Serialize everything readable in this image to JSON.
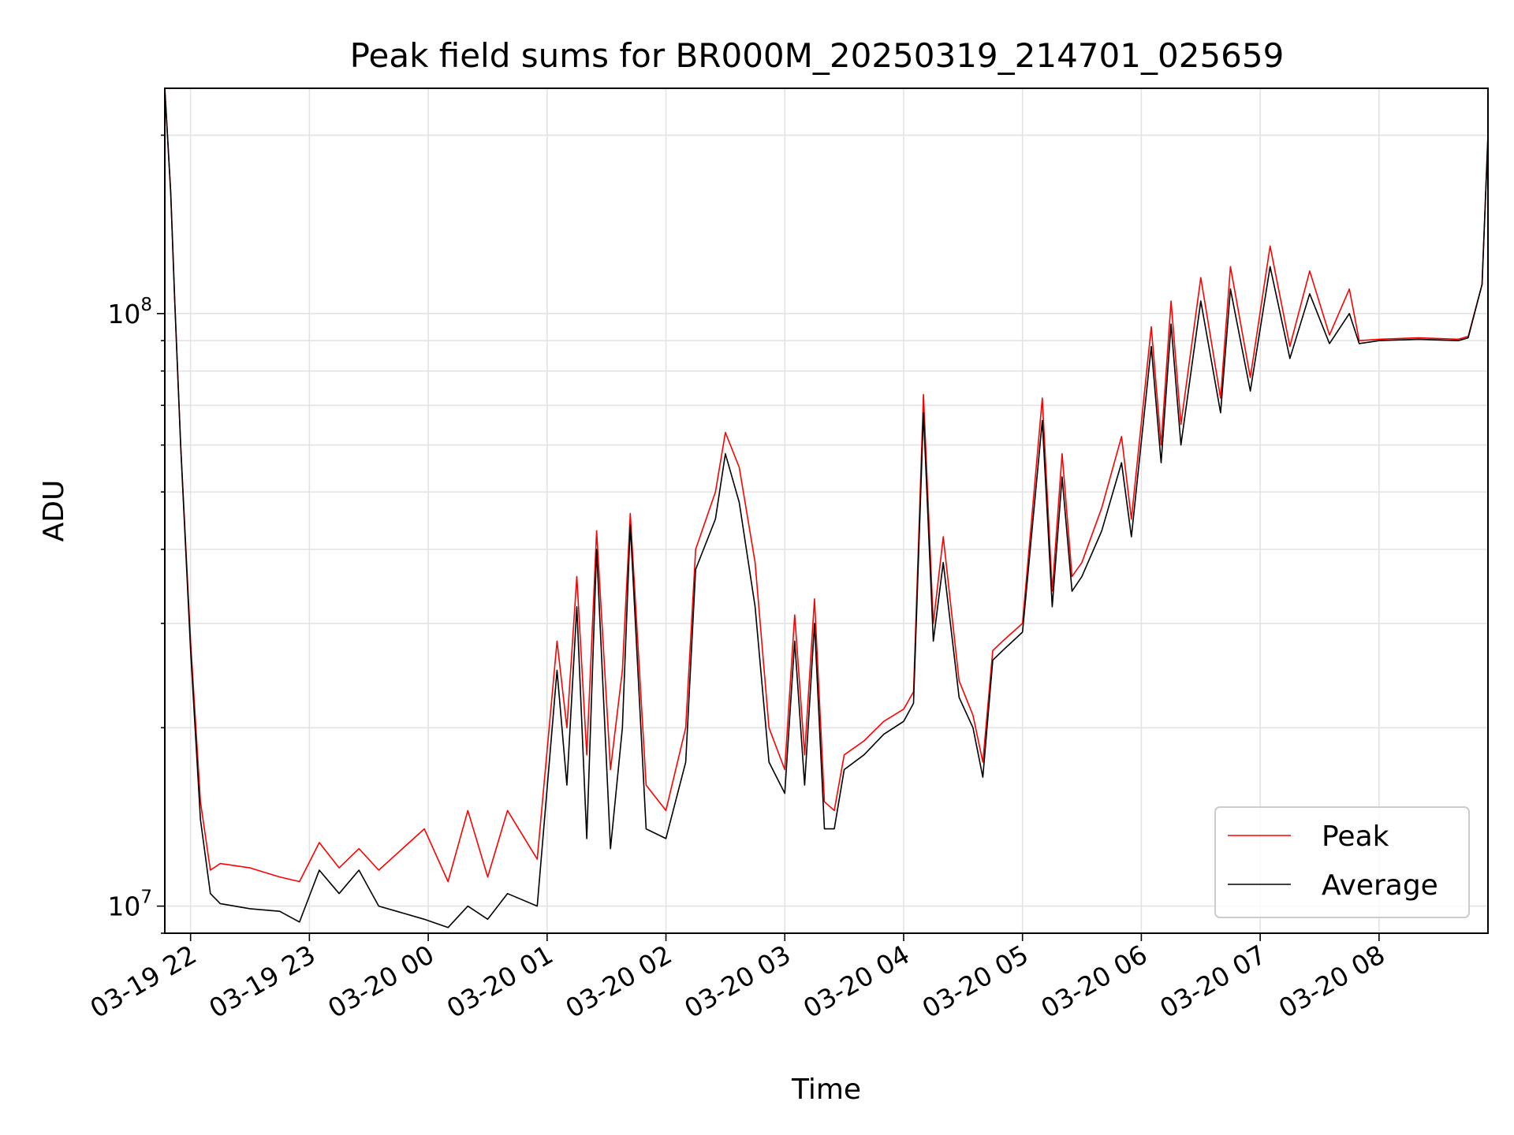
{
  "chart_data": {
    "type": "line",
    "title": "Peak field sums for BR000M_20250319_214701_025659",
    "xlabel": "Time",
    "ylabel": "ADU",
    "yscale": "log",
    "ylim": [
      9000000,
      240000000
    ],
    "xlim": [
      "2025-03-19 21:47",
      "2025-03-20 08:55"
    ],
    "x_ticks": [
      {
        "value": "2025-03-19 22:00",
        "label": "03-19 22"
      },
      {
        "value": "2025-03-19 23:00",
        "label": "03-19 23"
      },
      {
        "value": "2025-03-20 00:00",
        "label": "03-20 00"
      },
      {
        "value": "2025-03-20 01:00",
        "label": "03-20 01"
      },
      {
        "value": "2025-03-20 02:00",
        "label": "03-20 02"
      },
      {
        "value": "2025-03-20 03:00",
        "label": "03-20 03"
      },
      {
        "value": "2025-03-20 04:00",
        "label": "03-20 04"
      },
      {
        "value": "2025-03-20 05:00",
        "label": "03-20 05"
      },
      {
        "value": "2025-03-20 06:00",
        "label": "03-20 06"
      },
      {
        "value": "2025-03-20 07:00",
        "label": "03-20 07"
      },
      {
        "value": "2025-03-20 08:00",
        "label": "03-20 08"
      }
    ],
    "y_ticks": [
      {
        "value": 10000000,
        "base": "10",
        "exp": "7"
      },
      {
        "value": 100000000,
        "base": "10",
        "exp": "8"
      }
    ],
    "grid": true,
    "legend_position": "lower-right",
    "series": [
      {
        "name": "Peak",
        "color": "#ff0000",
        "points": [
          [
            "2025-03-19 21:47",
            240000000
          ],
          [
            "2025-03-19 21:50",
            160000000
          ],
          [
            "2025-03-19 21:52",
            105000000
          ],
          [
            "2025-03-19 21:55",
            60000000
          ],
          [
            "2025-03-19 22:00",
            28000000
          ],
          [
            "2025-03-19 22:05",
            15000000
          ],
          [
            "2025-03-19 22:10",
            11500000
          ],
          [
            "2025-03-19 22:15",
            11800000
          ],
          [
            "2025-03-19 22:30",
            11600000
          ],
          [
            "2025-03-19 22:45",
            11200000
          ],
          [
            "2025-03-19 22:55",
            11000000
          ],
          [
            "2025-03-19 23:05",
            12800000
          ],
          [
            "2025-03-19 23:15",
            11600000
          ],
          [
            "2025-03-19 23:25",
            12500000
          ],
          [
            "2025-03-19 23:35",
            11500000
          ],
          [
            "2025-03-19 23:58",
            13500000
          ],
          [
            "2025-03-20 00:10",
            11000000
          ],
          [
            "2025-03-20 00:20",
            14500000
          ],
          [
            "2025-03-20 00:30",
            11200000
          ],
          [
            "2025-03-20 00:40",
            14500000
          ],
          [
            "2025-03-20 00:55",
            12000000
          ],
          [
            "2025-03-20 01:05",
            28000000
          ],
          [
            "2025-03-20 01:10",
            20000000
          ],
          [
            "2025-03-20 01:15",
            36000000
          ],
          [
            "2025-03-20 01:20",
            18000000
          ],
          [
            "2025-03-20 01:25",
            43000000
          ],
          [
            "2025-03-20 01:32",
            17000000
          ],
          [
            "2025-03-20 01:38",
            25000000
          ],
          [
            "2025-03-20 01:42",
            46000000
          ],
          [
            "2025-03-20 01:50",
            16000000
          ],
          [
            "2025-03-20 02:00",
            14500000
          ],
          [
            "2025-03-20 02:10",
            20000000
          ],
          [
            "2025-03-20 02:15",
            40000000
          ],
          [
            "2025-03-20 02:25",
            50000000
          ],
          [
            "2025-03-20 02:30",
            63000000
          ],
          [
            "2025-03-20 02:37",
            55000000
          ],
          [
            "2025-03-20 02:45",
            38000000
          ],
          [
            "2025-03-20 02:52",
            20000000
          ],
          [
            "2025-03-20 03:00",
            17000000
          ],
          [
            "2025-03-20 03:05",
            31000000
          ],
          [
            "2025-03-20 03:10",
            18000000
          ],
          [
            "2025-03-20 03:15",
            33000000
          ],
          [
            "2025-03-20 03:20",
            15000000
          ],
          [
            "2025-03-20 03:25",
            14500000
          ],
          [
            "2025-03-20 03:30",
            18000000
          ],
          [
            "2025-03-20 03:40",
            19000000
          ],
          [
            "2025-03-20 03:50",
            20500000
          ],
          [
            "2025-03-20 04:00",
            21500000
          ],
          [
            "2025-03-20 04:05",
            23000000
          ],
          [
            "2025-03-20 04:10",
            73000000
          ],
          [
            "2025-03-20 04:15",
            30000000
          ],
          [
            "2025-03-20 04:20",
            42000000
          ],
          [
            "2025-03-20 04:28",
            24000000
          ],
          [
            "2025-03-20 04:35",
            21000000
          ],
          [
            "2025-03-20 04:40",
            17500000
          ],
          [
            "2025-03-20 04:45",
            27000000
          ],
          [
            "2025-03-20 04:50",
            28000000
          ],
          [
            "2025-03-20 05:00",
            30000000
          ],
          [
            "2025-03-20 05:10",
            72000000
          ],
          [
            "2025-03-20 05:15",
            34000000
          ],
          [
            "2025-03-20 05:20",
            58000000
          ],
          [
            "2025-03-20 05:25",
            36000000
          ],
          [
            "2025-03-20 05:30",
            38000000
          ],
          [
            "2025-03-20 05:40",
            47000000
          ],
          [
            "2025-03-20 05:50",
            62000000
          ],
          [
            "2025-03-20 05:55",
            45000000
          ],
          [
            "2025-03-20 06:05",
            95000000
          ],
          [
            "2025-03-20 06:10",
            60000000
          ],
          [
            "2025-03-20 06:15",
            105000000
          ],
          [
            "2025-03-20 06:20",
            65000000
          ],
          [
            "2025-03-20 06:30",
            115000000
          ],
          [
            "2025-03-20 06:40",
            72000000
          ],
          [
            "2025-03-20 06:45",
            120000000
          ],
          [
            "2025-03-20 06:55",
            78000000
          ],
          [
            "2025-03-20 07:05",
            130000000
          ],
          [
            "2025-03-20 07:15",
            88000000
          ],
          [
            "2025-03-20 07:25",
            118000000
          ],
          [
            "2025-03-20 07:35",
            92000000
          ],
          [
            "2025-03-20 07:45",
            110000000
          ],
          [
            "2025-03-20 07:50",
            90000000
          ],
          [
            "2025-03-20 08:00",
            90500000
          ],
          [
            "2025-03-20 08:20",
            91000000
          ],
          [
            "2025-03-20 08:40",
            90500000
          ],
          [
            "2025-03-20 08:45",
            91500000
          ],
          [
            "2025-03-20 08:52",
            112000000
          ],
          [
            "2025-03-20 08:55",
            200000000
          ]
        ]
      },
      {
        "name": "Average",
        "color": "#000000",
        "points": [
          [
            "2025-03-19 21:47",
            240000000
          ],
          [
            "2025-03-19 21:50",
            160000000
          ],
          [
            "2025-03-19 21:52",
            105000000
          ],
          [
            "2025-03-19 21:55",
            60000000
          ],
          [
            "2025-03-19 22:00",
            27000000
          ],
          [
            "2025-03-19 22:05",
            14000000
          ],
          [
            "2025-03-19 22:10",
            10500000
          ],
          [
            "2025-03-19 22:15",
            10100000
          ],
          [
            "2025-03-19 22:30",
            9900000
          ],
          [
            "2025-03-19 22:45",
            9800000
          ],
          [
            "2025-03-19 22:55",
            9400000
          ],
          [
            "2025-03-19 23:05",
            11500000
          ],
          [
            "2025-03-19 23:15",
            10500000
          ],
          [
            "2025-03-19 23:25",
            11500000
          ],
          [
            "2025-03-19 23:35",
            10000000
          ],
          [
            "2025-03-19 23:58",
            9500000
          ],
          [
            "2025-03-20 00:10",
            9200000
          ],
          [
            "2025-03-20 00:20",
            10000000
          ],
          [
            "2025-03-20 00:30",
            9500000
          ],
          [
            "2025-03-20 00:40",
            10500000
          ],
          [
            "2025-03-20 00:55",
            10000000
          ],
          [
            "2025-03-20 01:05",
            25000000
          ],
          [
            "2025-03-20 01:10",
            16000000
          ],
          [
            "2025-03-20 01:15",
            32000000
          ],
          [
            "2025-03-20 01:20",
            13000000
          ],
          [
            "2025-03-20 01:25",
            40000000
          ],
          [
            "2025-03-20 01:32",
            12500000
          ],
          [
            "2025-03-20 01:38",
            20000000
          ],
          [
            "2025-03-20 01:42",
            44000000
          ],
          [
            "2025-03-20 01:50",
            13500000
          ],
          [
            "2025-03-20 02:00",
            13000000
          ],
          [
            "2025-03-20 02:10",
            17500000
          ],
          [
            "2025-03-20 02:15",
            37000000
          ],
          [
            "2025-03-20 02:25",
            45000000
          ],
          [
            "2025-03-20 02:30",
            58000000
          ],
          [
            "2025-03-20 02:37",
            48000000
          ],
          [
            "2025-03-20 02:45",
            32000000
          ],
          [
            "2025-03-20 02:52",
            17500000
          ],
          [
            "2025-03-20 03:00",
            15500000
          ],
          [
            "2025-03-20 03:05",
            28000000
          ],
          [
            "2025-03-20 03:10",
            16000000
          ],
          [
            "2025-03-20 03:15",
            30000000
          ],
          [
            "2025-03-20 03:20",
            13500000
          ],
          [
            "2025-03-20 03:25",
            13500000
          ],
          [
            "2025-03-20 03:30",
            17000000
          ],
          [
            "2025-03-20 03:40",
            18000000
          ],
          [
            "2025-03-20 03:50",
            19500000
          ],
          [
            "2025-03-20 04:00",
            20500000
          ],
          [
            "2025-03-20 04:05",
            22000000
          ],
          [
            "2025-03-20 04:10",
            68000000
          ],
          [
            "2025-03-20 04:15",
            28000000
          ],
          [
            "2025-03-20 04:20",
            38000000
          ],
          [
            "2025-03-20 04:28",
            22500000
          ],
          [
            "2025-03-20 04:35",
            20000000
          ],
          [
            "2025-03-20 04:40",
            16500000
          ],
          [
            "2025-03-20 04:45",
            26000000
          ],
          [
            "2025-03-20 04:50",
            27000000
          ],
          [
            "2025-03-20 05:00",
            29000000
          ],
          [
            "2025-03-20 05:10",
            66000000
          ],
          [
            "2025-03-20 05:15",
            32000000
          ],
          [
            "2025-03-20 05:20",
            53000000
          ],
          [
            "2025-03-20 05:25",
            34000000
          ],
          [
            "2025-03-20 05:30",
            36000000
          ],
          [
            "2025-03-20 05:40",
            43000000
          ],
          [
            "2025-03-20 05:50",
            56000000
          ],
          [
            "2025-03-20 05:55",
            42000000
          ],
          [
            "2025-03-20 06:05",
            88000000
          ],
          [
            "2025-03-20 06:10",
            56000000
          ],
          [
            "2025-03-20 06:15",
            96000000
          ],
          [
            "2025-03-20 06:20",
            60000000
          ],
          [
            "2025-03-20 06:30",
            105000000
          ],
          [
            "2025-03-20 06:40",
            68000000
          ],
          [
            "2025-03-20 06:45",
            110000000
          ],
          [
            "2025-03-20 06:55",
            74000000
          ],
          [
            "2025-03-20 07:05",
            120000000
          ],
          [
            "2025-03-20 07:15",
            84000000
          ],
          [
            "2025-03-20 07:25",
            108000000
          ],
          [
            "2025-03-20 07:35",
            89000000
          ],
          [
            "2025-03-20 07:45",
            100000000
          ],
          [
            "2025-03-20 07:50",
            89000000
          ],
          [
            "2025-03-20 08:00",
            90000000
          ],
          [
            "2025-03-20 08:20",
            90500000
          ],
          [
            "2025-03-20 08:40",
            90000000
          ],
          [
            "2025-03-20 08:45",
            91000000
          ],
          [
            "2025-03-20 08:52",
            112000000
          ],
          [
            "2025-03-20 08:55",
            200000000
          ]
        ]
      }
    ]
  }
}
